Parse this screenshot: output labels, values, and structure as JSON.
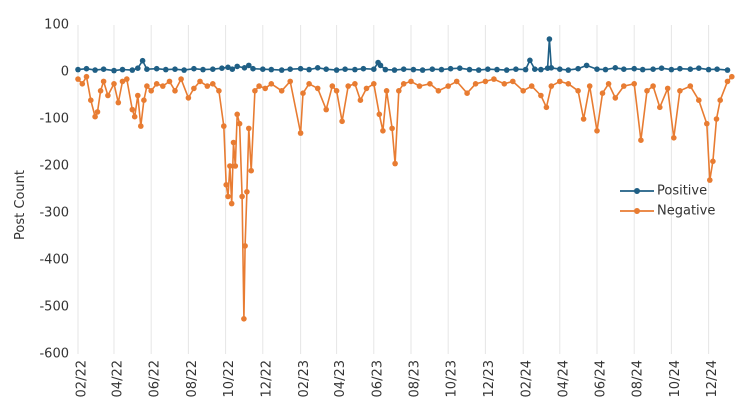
{
  "chart_data": {
    "type": "line",
    "title": "",
    "xlabel": "",
    "ylabel": "Post Count",
    "ylim": [
      -600,
      100
    ],
    "yticks": [
      100,
      0,
      -100,
      -200,
      -300,
      -400,
      -500,
      -600
    ],
    "ytick_labels": [
      "100",
      "0",
      "-100",
      "-200",
      "-300",
      "-400",
      "-500",
      "-600"
    ],
    "xlim": [
      "2022-02-01",
      "2025-01-10"
    ],
    "xticks": [
      "2022-02-01",
      "2022-04-01",
      "2022-06-01",
      "2022-08-01",
      "2022-10-01",
      "2022-12-01",
      "2023-02-01",
      "2023-04-01",
      "2023-06-01",
      "2023-08-01",
      "2023-10-01",
      "2023-12-01",
      "2024-02-01",
      "2024-04-01",
      "2024-06-01",
      "2024-08-01",
      "2024-10-01",
      "2024-12-01"
    ],
    "xtick_labels": [
      "02/22",
      "04/22",
      "06/22",
      "08/22",
      "10/22",
      "12/22",
      "02/23",
      "04/23",
      "06/23",
      "08/23",
      "10/23",
      "12/23",
      "02/24",
      "04/24",
      "06/24",
      "08/24",
      "10/24",
      "12/24"
    ],
    "grid": "vertical",
    "legend_position": "center-right",
    "series": [
      {
        "name": "Positive",
        "color": "#1f5f85",
        "points": [
          [
            "2022-02-01",
            5
          ],
          [
            "2022-02-15",
            7
          ],
          [
            "2022-03-01",
            4
          ],
          [
            "2022-03-15",
            6
          ],
          [
            "2022-04-01",
            3
          ],
          [
            "2022-04-15",
            5
          ],
          [
            "2022-05-01",
            4
          ],
          [
            "2022-05-10",
            8
          ],
          [
            "2022-05-18",
            24
          ],
          [
            "2022-05-25",
            6
          ],
          [
            "2022-06-10",
            7
          ],
          [
            "2022-06-25",
            5
          ],
          [
            "2022-07-10",
            6
          ],
          [
            "2022-07-25",
            4
          ],
          [
            "2022-08-10",
            7
          ],
          [
            "2022-08-25",
            5
          ],
          [
            "2022-09-10",
            6
          ],
          [
            "2022-09-25",
            8
          ],
          [
            "2022-10-05",
            10
          ],
          [
            "2022-10-12",
            6
          ],
          [
            "2022-10-20",
            12
          ],
          [
            "2022-11-01",
            9
          ],
          [
            "2022-11-08",
            14
          ],
          [
            "2022-11-15",
            7
          ],
          [
            "2022-12-01",
            6
          ],
          [
            "2022-12-15",
            5
          ],
          [
            "2023-01-01",
            4
          ],
          [
            "2023-01-15",
            6
          ],
          [
            "2023-02-01",
            7
          ],
          [
            "2023-02-15",
            5
          ],
          [
            "2023-03-01",
            9
          ],
          [
            "2023-03-15",
            6
          ],
          [
            "2023-04-01",
            4
          ],
          [
            "2023-04-15",
            6
          ],
          [
            "2023-05-01",
            5
          ],
          [
            "2023-05-15",
            7
          ],
          [
            "2023-06-01",
            6
          ],
          [
            "2023-06-08",
            20
          ],
          [
            "2023-06-12",
            14
          ],
          [
            "2023-06-20",
            5
          ],
          [
            "2023-07-05",
            4
          ],
          [
            "2023-07-20",
            6
          ],
          [
            "2023-08-05",
            5
          ],
          [
            "2023-08-20",
            4
          ],
          [
            "2023-09-05",
            6
          ],
          [
            "2023-09-20",
            5
          ],
          [
            "2023-10-05",
            7
          ],
          [
            "2023-10-20",
            8
          ],
          [
            "2023-11-05",
            5
          ],
          [
            "2023-11-20",
            4
          ],
          [
            "2023-12-05",
            6
          ],
          [
            "2023-12-20",
            5
          ],
          [
            "2024-01-05",
            4
          ],
          [
            "2024-01-20",
            6
          ],
          [
            "2024-02-05",
            5
          ],
          [
            "2024-02-12",
            25
          ],
          [
            "2024-02-20",
            6
          ],
          [
            "2024-03-01",
            5
          ],
          [
            "2024-03-12",
            8
          ],
          [
            "2024-03-15",
            70
          ],
          [
            "2024-03-18",
            9
          ],
          [
            "2024-04-01",
            6
          ],
          [
            "2024-04-15",
            4
          ],
          [
            "2024-05-01",
            7
          ],
          [
            "2024-05-15",
            14
          ],
          [
            "2024-06-01",
            6
          ],
          [
            "2024-06-15",
            5
          ],
          [
            "2024-07-01",
            9
          ],
          [
            "2024-07-15",
            6
          ],
          [
            "2024-08-01",
            7
          ],
          [
            "2024-08-15",
            5
          ],
          [
            "2024-09-01",
            6
          ],
          [
            "2024-09-15",
            8
          ],
          [
            "2024-10-01",
            5
          ],
          [
            "2024-10-15",
            7
          ],
          [
            "2024-11-01",
            6
          ],
          [
            "2024-11-15",
            8
          ],
          [
            "2024-12-01",
            5
          ],
          [
            "2024-12-15",
            6
          ],
          [
            "2025-01-01",
            4
          ]
        ]
      },
      {
        "name": "Negative",
        "color": "#e87c32",
        "points": [
          [
            "2022-02-01",
            -15
          ],
          [
            "2022-02-08",
            -25
          ],
          [
            "2022-02-15",
            -10
          ],
          [
            "2022-02-22",
            -60
          ],
          [
            "2022-03-01",
            -95
          ],
          [
            "2022-03-05",
            -85
          ],
          [
            "2022-03-10",
            -40
          ],
          [
            "2022-03-15",
            -20
          ],
          [
            "2022-03-22",
            -50
          ],
          [
            "2022-04-01",
            -25
          ],
          [
            "2022-04-08",
            -65
          ],
          [
            "2022-04-15",
            -20
          ],
          [
            "2022-04-22",
            -15
          ],
          [
            "2022-05-01",
            -80
          ],
          [
            "2022-05-05",
            -95
          ],
          [
            "2022-05-10",
            -50
          ],
          [
            "2022-05-15",
            -115
          ],
          [
            "2022-05-20",
            -60
          ],
          [
            "2022-05-25",
            -30
          ],
          [
            "2022-06-01",
            -40
          ],
          [
            "2022-06-10",
            -25
          ],
          [
            "2022-06-20",
            -30
          ],
          [
            "2022-07-01",
            -20
          ],
          [
            "2022-07-10",
            -40
          ],
          [
            "2022-07-20",
            -15
          ],
          [
            "2022-08-01",
            -55
          ],
          [
            "2022-08-10",
            -35
          ],
          [
            "2022-08-20",
            -20
          ],
          [
            "2022-09-01",
            -30
          ],
          [
            "2022-09-10",
            -25
          ],
          [
            "2022-09-20",
            -40
          ],
          [
            "2022-09-28",
            -115
          ],
          [
            "2022-10-02",
            -240
          ],
          [
            "2022-10-05",
            -265
          ],
          [
            "2022-10-08",
            -200
          ],
          [
            "2022-10-11",
            -280
          ],
          [
            "2022-10-14",
            -150
          ],
          [
            "2022-10-17",
            -200
          ],
          [
            "2022-10-20",
            -90
          ],
          [
            "2022-10-24",
            -110
          ],
          [
            "2022-10-28",
            -265
          ],
          [
            "2022-10-31",
            -525
          ],
          [
            "2022-11-02",
            -370
          ],
          [
            "2022-11-05",
            -255
          ],
          [
            "2022-11-08",
            -120
          ],
          [
            "2022-11-12",
            -210
          ],
          [
            "2022-11-18",
            -40
          ],
          [
            "2022-11-25",
            -30
          ],
          [
            "2022-12-05",
            -35
          ],
          [
            "2022-12-15",
            -25
          ],
          [
            "2023-01-01",
            -40
          ],
          [
            "2023-01-15",
            -20
          ],
          [
            "2023-02-01",
            -130
          ],
          [
            "2023-02-05",
            -45
          ],
          [
            "2023-02-15",
            -25
          ],
          [
            "2023-03-01",
            -35
          ],
          [
            "2023-03-15",
            -80
          ],
          [
            "2023-03-25",
            -30
          ],
          [
            "2023-04-01",
            -40
          ],
          [
            "2023-04-10",
            -105
          ],
          [
            "2023-04-20",
            -30
          ],
          [
            "2023-05-01",
            -25
          ],
          [
            "2023-05-10",
            -60
          ],
          [
            "2023-05-20",
            -35
          ],
          [
            "2023-06-01",
            -25
          ],
          [
            "2023-06-10",
            -90
          ],
          [
            "2023-06-16",
            -125
          ],
          [
            "2023-06-22",
            -40
          ],
          [
            "2023-07-01",
            -120
          ],
          [
            "2023-07-06",
            -195
          ],
          [
            "2023-07-12",
            -40
          ],
          [
            "2023-07-20",
            -25
          ],
          [
            "2023-08-01",
            -20
          ],
          [
            "2023-08-15",
            -30
          ],
          [
            "2023-09-01",
            -25
          ],
          [
            "2023-09-15",
            -40
          ],
          [
            "2023-10-01",
            -30
          ],
          [
            "2023-10-15",
            -20
          ],
          [
            "2023-11-01",
            -45
          ],
          [
            "2023-11-15",
            -25
          ],
          [
            "2023-12-01",
            -20
          ],
          [
            "2023-12-15",
            -15
          ],
          [
            "2024-01-01",
            -25
          ],
          [
            "2024-01-15",
            -20
          ],
          [
            "2024-02-01",
            -40
          ],
          [
            "2024-02-15",
            -30
          ],
          [
            "2024-03-01",
            -50
          ],
          [
            "2024-03-10",
            -75
          ],
          [
            "2024-03-18",
            -30
          ],
          [
            "2024-04-01",
            -20
          ],
          [
            "2024-04-15",
            -25
          ],
          [
            "2024-05-01",
            -40
          ],
          [
            "2024-05-10",
            -100
          ],
          [
            "2024-05-20",
            -30
          ],
          [
            "2024-06-01",
            -125
          ],
          [
            "2024-06-10",
            -45
          ],
          [
            "2024-06-20",
            -25
          ],
          [
            "2024-07-01",
            -55
          ],
          [
            "2024-07-15",
            -30
          ],
          [
            "2024-08-01",
            -25
          ],
          [
            "2024-08-12",
            -145
          ],
          [
            "2024-08-22",
            -40
          ],
          [
            "2024-09-01",
            -30
          ],
          [
            "2024-09-12",
            -75
          ],
          [
            "2024-09-25",
            -35
          ],
          [
            "2024-10-05",
            -140
          ],
          [
            "2024-10-15",
            -40
          ],
          [
            "2024-11-01",
            -30
          ],
          [
            "2024-11-15",
            -60
          ],
          [
            "2024-11-28",
            -110
          ],
          [
            "2024-12-03",
            -230
          ],
          [
            "2024-12-08",
            -190
          ],
          [
            "2024-12-14",
            -100
          ],
          [
            "2024-12-20",
            -60
          ],
          [
            "2025-01-01",
            -20
          ],
          [
            "2025-01-08",
            -10
          ]
        ]
      }
    ]
  }
}
